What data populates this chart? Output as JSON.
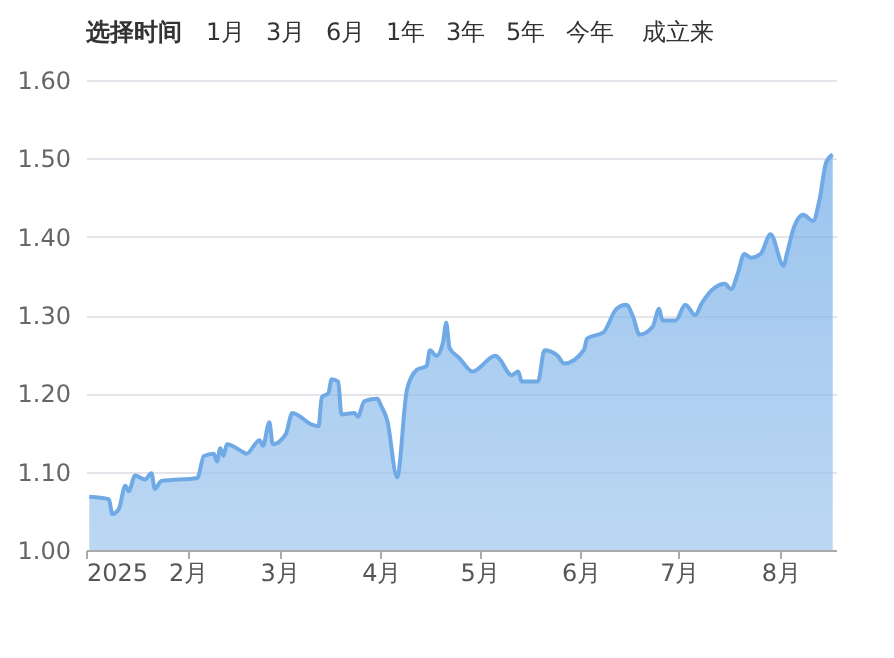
{
  "chart_data": {
    "type": "area",
    "annotations": [
      "选择时间",
      "1月",
      "3月",
      "6月",
      "1年",
      "3年",
      "5年",
      "今年",
      "成立来"
    ],
    "x": [
      "2025-01-02",
      "2025-01-08",
      "2025-01-09",
      "2025-01-11",
      "2025-01-13",
      "2025-01-14",
      "2025-01-16",
      "2025-01-19",
      "2025-01-21",
      "2025-01-22",
      "2025-01-24",
      "2025-02-04",
      "2025-02-06",
      "2025-02-09",
      "2025-02-10",
      "2025-02-11",
      "2025-02-12",
      "2025-02-13",
      "2025-02-18",
      "2025-02-19",
      "2025-02-23",
      "2025-02-24",
      "2025-02-26",
      "2025-02-27",
      "2025-03-03",
      "2025-03-05",
      "2025-03-11",
      "2025-03-13",
      "2025-03-14",
      "2025-03-16",
      "2025-03-17",
      "2025-03-19",
      "2025-03-20",
      "2025-03-24",
      "2025-03-25",
      "2025-03-27",
      "2025-03-31",
      "2025-04-01",
      "2025-04-03",
      "2025-04-06",
      "2025-04-09",
      "2025-04-12",
      "2025-04-15",
      "2025-04-16",
      "2025-04-18",
      "2025-04-20",
      "2025-04-21",
      "2025-04-22",
      "2025-04-25",
      "2025-04-29",
      "2025-05-06",
      "2025-05-07",
      "2025-05-11",
      "2025-05-13",
      "2025-05-14",
      "2025-05-19",
      "2025-05-21",
      "2025-05-25",
      "2025-05-27",
      "2025-06-02",
      "2025-06-03",
      "2025-06-08",
      "2025-06-12",
      "2025-06-15",
      "2025-06-17",
      "2025-06-19",
      "2025-06-23",
      "2025-06-25",
      "2025-06-26",
      "2025-06-30",
      "2025-07-03",
      "2025-07-06",
      "2025-07-08",
      "2025-07-12",
      "2025-07-15",
      "2025-07-17",
      "2025-07-19",
      "2025-07-21",
      "2025-07-23",
      "2025-07-26",
      "2025-07-29",
      "2025-08-02",
      "2025-08-03",
      "2025-08-05",
      "2025-08-08",
      "2025-08-11",
      "2025-08-13",
      "2025-08-15",
      "2025-08-17"
    ],
    "series": [
      {
        "color": "#6faae6",
        "values": [
          1.068,
          1.065,
          1.046,
          1.052,
          1.082,
          1.075,
          1.095,
          1.09,
          1.098,
          1.078,
          1.088,
          1.092,
          1.12,
          1.123,
          1.113,
          1.13,
          1.12,
          1.135,
          1.125,
          1.123,
          1.14,
          1.133,
          1.163,
          1.135,
          1.148,
          1.175,
          1.16,
          1.158,
          1.195,
          1.2,
          1.218,
          1.215,
          1.173,
          1.175,
          1.17,
          1.19,
          1.193,
          1.185,
          1.165,
          1.093,
          1.205,
          1.23,
          1.235,
          1.255,
          1.248,
          1.265,
          1.29,
          1.258,
          1.245,
          1.228,
          1.248,
          1.245,
          1.223,
          1.228,
          1.215,
          1.215,
          1.255,
          1.248,
          1.238,
          1.255,
          1.27,
          1.278,
          1.308,
          1.313,
          1.298,
          1.275,
          1.285,
          1.308,
          1.293,
          1.293,
          1.313,
          1.3,
          1.315,
          1.335,
          1.34,
          1.333,
          1.353,
          1.378,
          1.373,
          1.378,
          1.403,
          1.363,
          1.378,
          1.41,
          1.428,
          1.42,
          1.448,
          1.495,
          1.505
        ]
      }
    ],
    "xlim": [
      "2025-01-01",
      "2025-08-18"
    ],
    "xticks": [
      {
        "value": "2025-01-01",
        "label": "2025"
      },
      {
        "value": "2025-02-01",
        "label": "2月"
      },
      {
        "value": "2025-03-01",
        "label": "3月"
      },
      {
        "value": "2025-04-01",
        "label": "4月"
      },
      {
        "value": "2025-05-01",
        "label": "5月"
      },
      {
        "value": "2025-06-01",
        "label": "6月"
      },
      {
        "value": "2025-07-01",
        "label": "7月"
      },
      {
        "value": "2025-08-01",
        "label": "8月"
      }
    ],
    "ylim": [
      1.0,
      1.6
    ],
    "yticks": [
      {
        "value": 1.0,
        "label": "1.00"
      },
      {
        "value": 1.1,
        "label": "1.10"
      },
      {
        "value": 1.2,
        "label": "1.20"
      },
      {
        "value": 1.3,
        "label": "1.30"
      },
      {
        "value": 1.4,
        "label": "1.40"
      },
      {
        "value": 1.5,
        "label": "1.50"
      },
      {
        "value": 1.6,
        "label": "1.60"
      }
    ],
    "grid": "y"
  }
}
